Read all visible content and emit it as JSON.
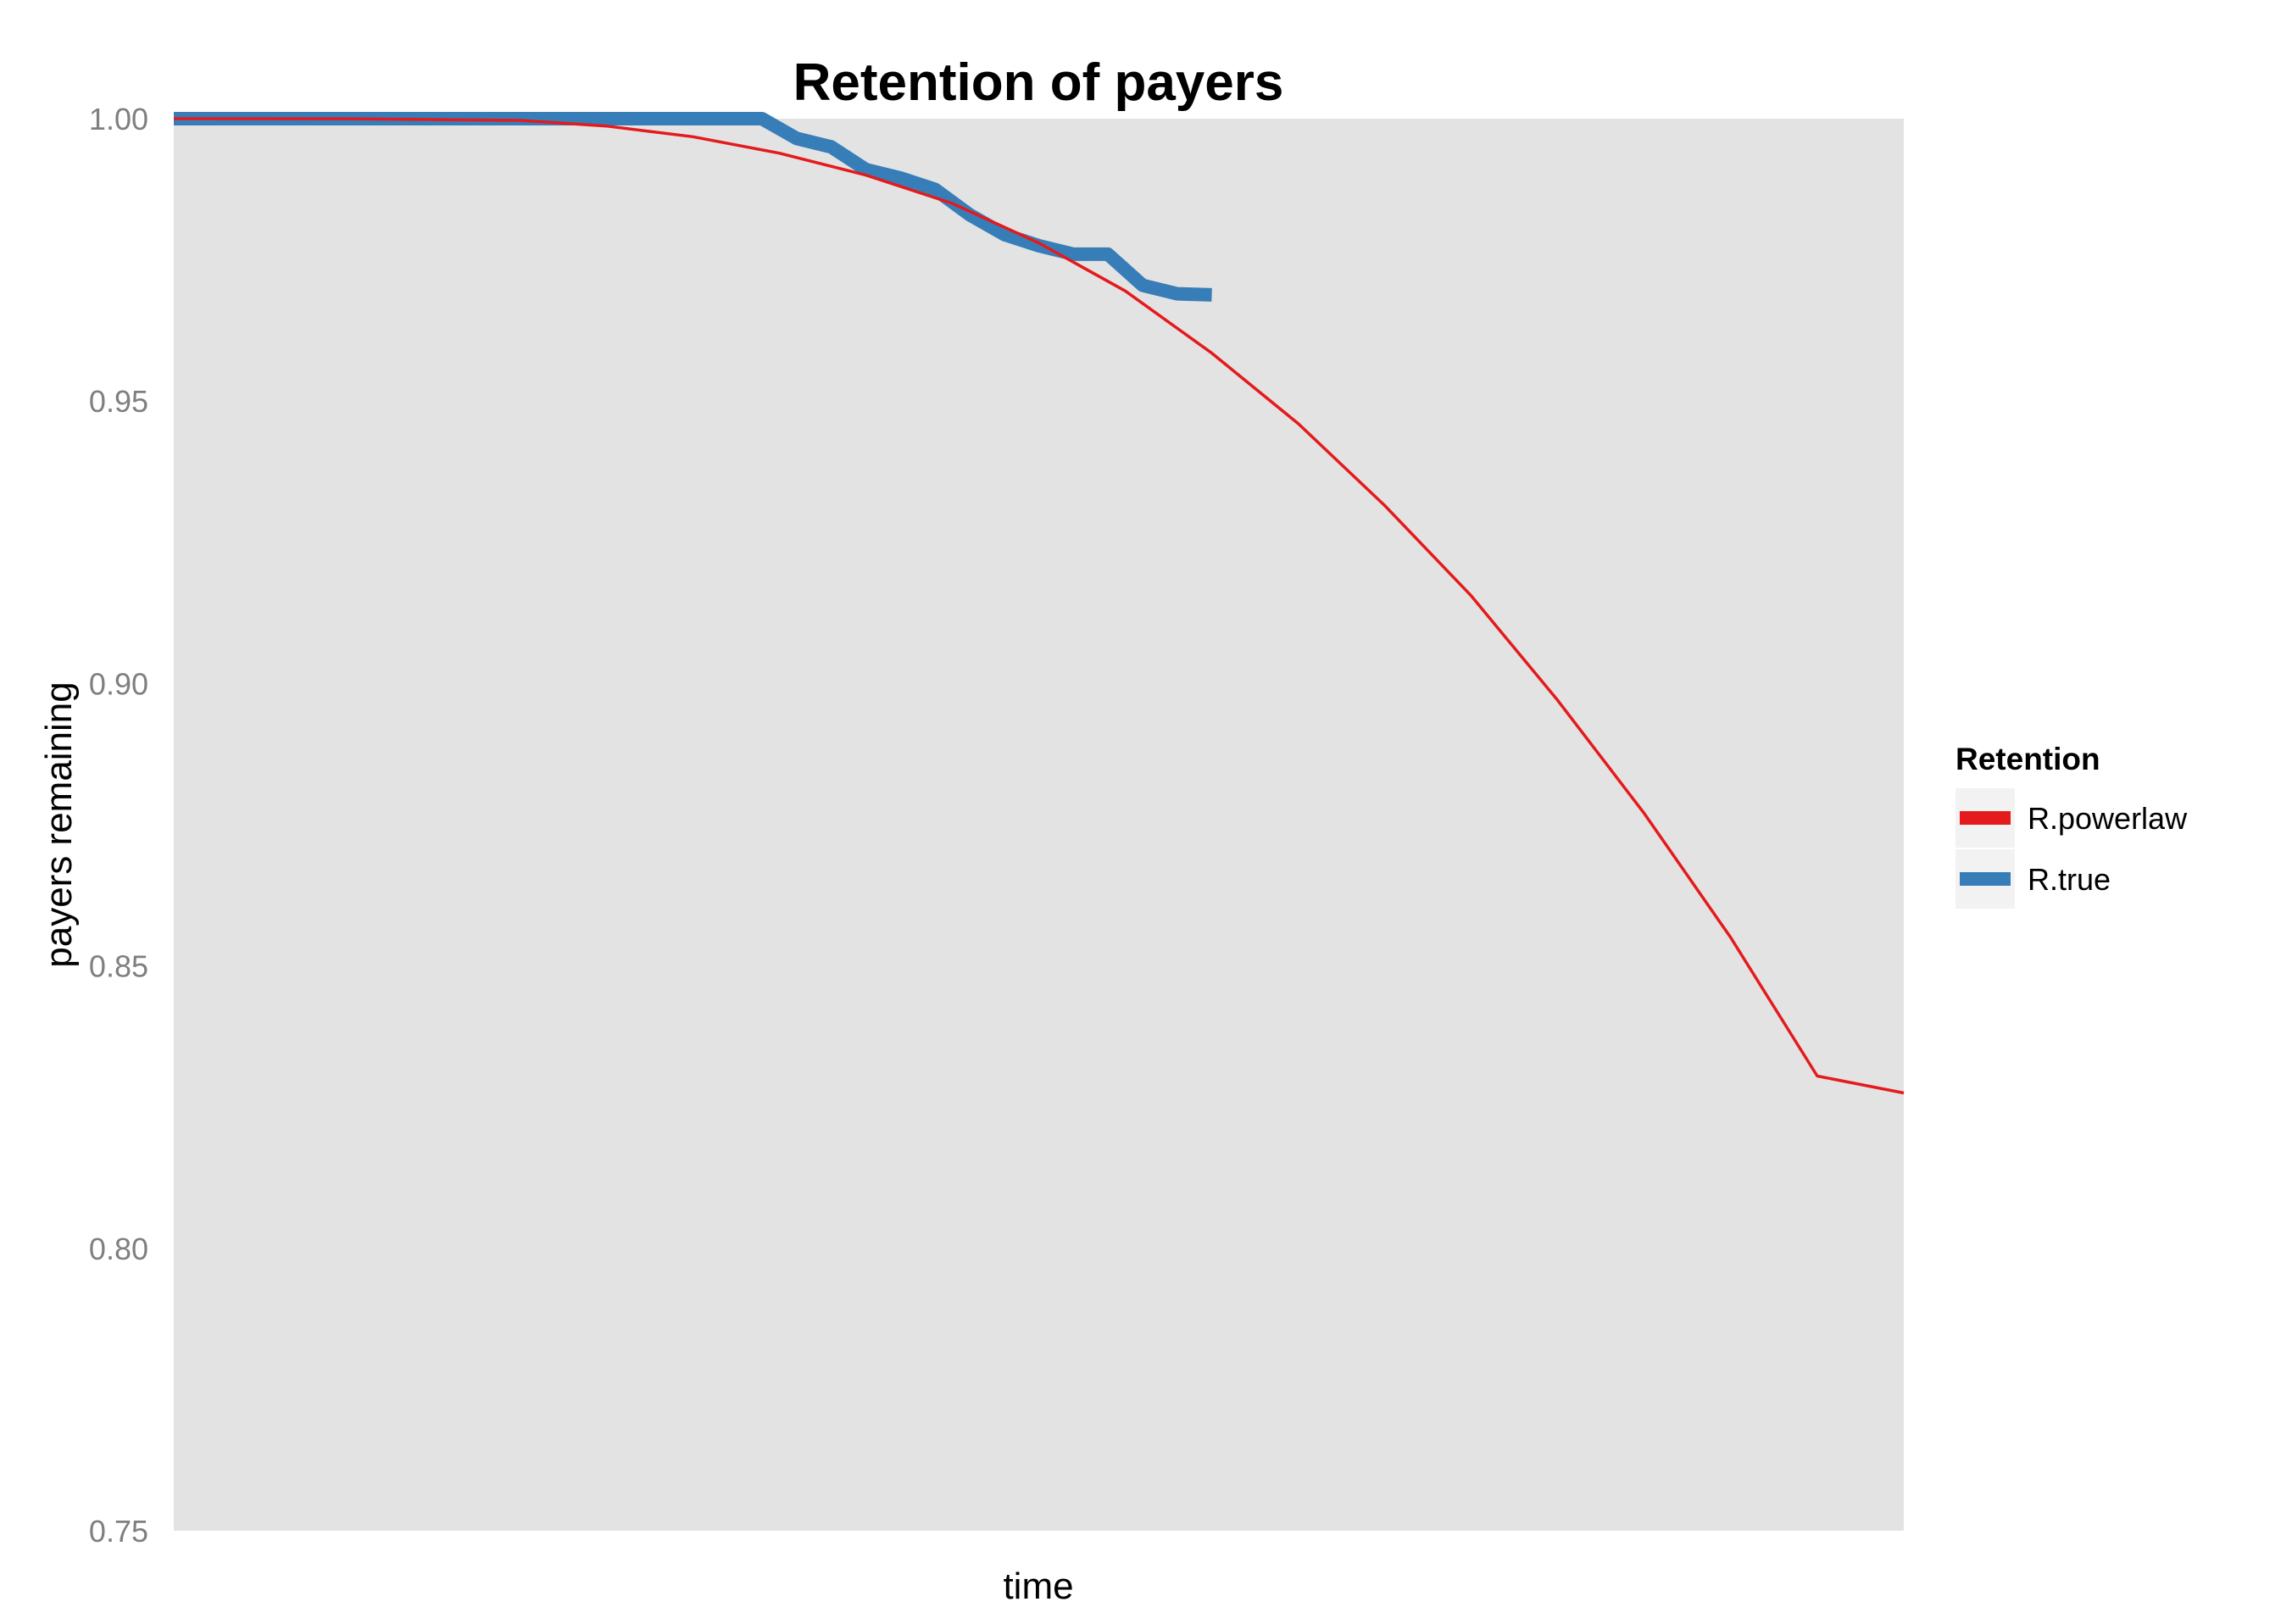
{
  "chart_data": {
    "type": "line",
    "title": "Retention of payers",
    "xlabel": "time",
    "ylabel": "payers remaining",
    "ylim": [
      0.75,
      1.0
    ],
    "xlim": [
      0,
      1
    ],
    "yticks": [
      1.0,
      0.95,
      0.9,
      0.85,
      0.8,
      0.75
    ],
    "ytick_labels": [
      "1.00",
      "0.95",
      "0.90",
      "0.85",
      "0.80",
      "0.75"
    ],
    "xtick_labels": [],
    "grid": false,
    "panel_background": "#e3e3e3",
    "legend": {
      "title": "Retention",
      "position": "right"
    },
    "series": [
      {
        "name": "R.powerlaw",
        "color": "#e41a1c",
        "x": [
          0,
          0.1,
          0.2,
          0.25,
          0.3,
          0.35,
          0.4,
          0.45,
          0.5,
          0.55,
          0.6,
          0.65,
          0.7,
          0.75,
          0.8,
          0.85,
          0.9,
          0.95,
          1.0
        ],
        "y": [
          1.0,
          0.99998,
          0.9997,
          0.9987,
          0.9968,
          0.9939,
          0.99,
          0.985,
          0.978,
          0.9695,
          0.9585,
          0.946,
          0.9315,
          0.9155,
          0.897,
          0.877,
          0.855,
          0.8305,
          0.8275
        ]
      },
      {
        "name": "R.true",
        "color": "#377eb8",
        "x": [
          0,
          0.34,
          0.36,
          0.38,
          0.4,
          0.42,
          0.44,
          0.46,
          0.48,
          0.5,
          0.52,
          0.54,
          0.56,
          0.58,
          0.6
        ],
        "y": [
          1.0,
          1.0,
          0.9965,
          0.995,
          0.991,
          0.9895,
          0.9875,
          0.983,
          0.9795,
          0.9775,
          0.976,
          0.976,
          0.9705,
          0.969,
          0.9688
        ]
      }
    ]
  }
}
